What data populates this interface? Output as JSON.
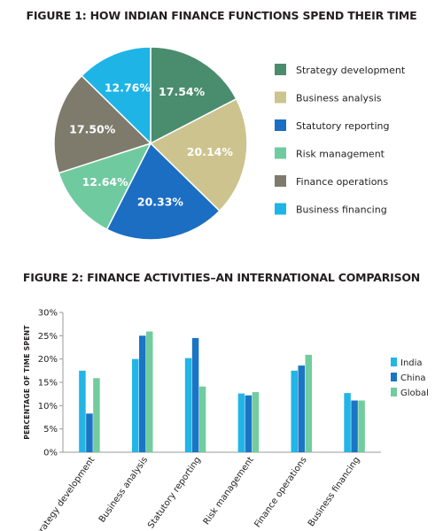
{
  "colors": {
    "strategy": "#4a8c6e",
    "business_analysis": "#cdc38f",
    "statutory": "#1b6ec2",
    "risk": "#6fcaa0",
    "finance_ops": "#7e7b6c",
    "financing": "#1eb4e6",
    "india": "#22b5e6",
    "china": "#1a75c5",
    "global": "#72cc9e"
  },
  "chart_data": [
    {
      "type": "pie",
      "title": "FIGURE 1: HOW INDIAN FINANCE FUNCTIONS SPEND THEIR TIME",
      "slices": [
        {
          "label": "Strategy development",
          "value": 17.54,
          "display": "17.54%",
          "color": "#4a8c6e"
        },
        {
          "label": "Business analysis",
          "value": 20.14,
          "display": "20.14%",
          "color": "#cdc38f"
        },
        {
          "label": "Statutory reporting",
          "value": 20.33,
          "display": "20.33%",
          "color": "#1b6ec2"
        },
        {
          "label": "Risk management",
          "value": 12.64,
          "display": "12.64%",
          "color": "#6fcaa0"
        },
        {
          "label": "Finance operations",
          "value": 17.5,
          "display": "17.50%",
          "color": "#7e7b6c"
        },
        {
          "label": "Business financing",
          "value": 12.76,
          "display": "12.76%",
          "color": "#1eb4e6"
        }
      ],
      "legend_placement": "right"
    },
    {
      "type": "bar",
      "title": "FIGURE 2: FINANCE ACTIVITIES–AN INTERNATIONAL COMPARISON",
      "categories": [
        "Strategy development",
        "Business analysis",
        "Statutory reporting",
        "Risk management",
        "Finance operations",
        "Business financing"
      ],
      "series": [
        {
          "name": "India",
          "values": [
            17.5,
            20.0,
            20.2,
            12.6,
            17.5,
            12.7
          ],
          "color": "#22b5e6"
        },
        {
          "name": "China",
          "values": [
            8.3,
            25.0,
            24.5,
            12.2,
            18.6,
            11.1
          ],
          "color": "#1a75c5"
        },
        {
          "name": "Global",
          "values": [
            15.9,
            25.9,
            14.1,
            12.9,
            20.9,
            11.1
          ],
          "color": "#72cc9e"
        }
      ],
      "ylabel": "PERCENTAGE OF TIME SPENT",
      "ylim": [
        0,
        30
      ],
      "yticks": [
        "0%",
        "5%",
        "10%",
        "15%",
        "20%",
        "25%",
        "30%"
      ],
      "grid": false,
      "legend_placement": "right"
    }
  ]
}
